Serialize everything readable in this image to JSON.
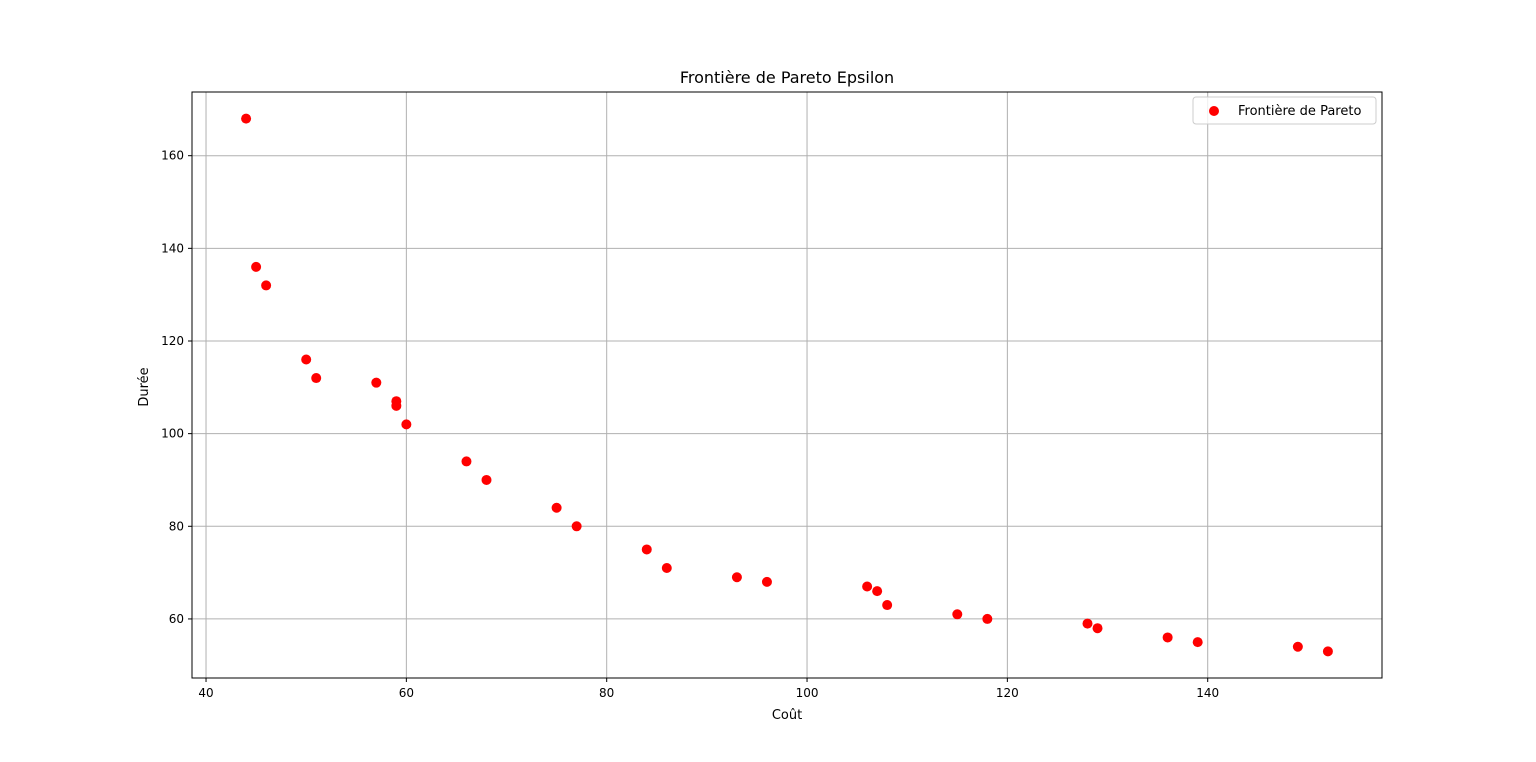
{
  "chart_data": {
    "type": "scatter",
    "title": "Frontière de Pareto Epsilon",
    "xlabel": "Coût",
    "ylabel": "Durée",
    "xlim": [
      38.6,
      157.4
    ],
    "ylim": [
      47.25,
      173.75
    ],
    "xticks": [
      40,
      60,
      80,
      100,
      120,
      140
    ],
    "yticks": [
      60,
      80,
      100,
      120,
      140,
      160
    ],
    "grid": true,
    "legend_position": "top-right",
    "series": [
      {
        "name": "Frontière de Pareto",
        "color": "#ff0000",
        "marker": "circle",
        "points": [
          [
            44,
            168
          ],
          [
            45,
            136
          ],
          [
            46,
            132
          ],
          [
            50,
            116
          ],
          [
            51,
            112
          ],
          [
            57,
            111
          ],
          [
            59,
            107
          ],
          [
            59,
            106
          ],
          [
            60,
            102
          ],
          [
            66,
            94
          ],
          [
            68,
            90
          ],
          [
            75,
            84
          ],
          [
            77,
            80
          ],
          [
            84,
            75
          ],
          [
            86,
            71
          ],
          [
            93,
            69
          ],
          [
            96,
            68
          ],
          [
            106,
            67
          ],
          [
            107,
            66
          ],
          [
            108,
            63
          ],
          [
            115,
            61
          ],
          [
            118,
            60
          ],
          [
            128,
            59
          ],
          [
            129,
            58
          ],
          [
            136,
            56
          ],
          [
            139,
            55
          ],
          [
            149,
            54
          ],
          [
            152,
            53
          ]
        ]
      }
    ]
  }
}
